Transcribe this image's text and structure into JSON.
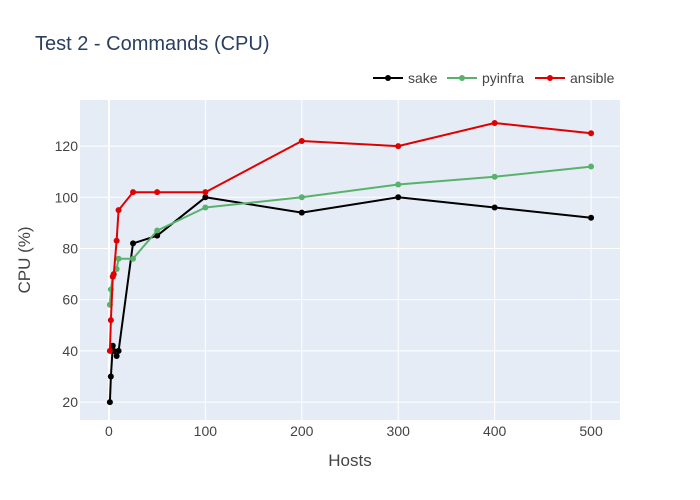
{
  "chart_data": {
    "type": "line",
    "title": "Test 2 - Commands (CPU)",
    "xlabel": "Hosts",
    "ylabel": "CPU (%)",
    "xlim": [
      -30,
      530
    ],
    "ylim": [
      13,
      138
    ],
    "x_ticks": [
      0,
      100,
      200,
      300,
      400,
      500
    ],
    "y_ticks": [
      20,
      40,
      60,
      80,
      100,
      120
    ],
    "grid": true,
    "legend_position": "top-right",
    "series": [
      {
        "name": "sake",
        "color": "#000000",
        "x": [
          1,
          2,
          4,
          5,
          8,
          10,
          25,
          50,
          100,
          200,
          300,
          400,
          500
        ],
        "y": [
          20,
          30,
          42,
          40,
          38,
          40,
          82,
          85,
          100,
          94,
          100,
          96,
          92
        ]
      },
      {
        "name": "pyinfra",
        "color": "#59b26b",
        "x": [
          1,
          2,
          4,
          5,
          8,
          10,
          25,
          50,
          100,
          200,
          300,
          400,
          500
        ],
        "y": [
          58,
          64,
          69,
          70,
          72,
          76,
          76,
          87,
          96,
          100,
          105,
          108,
          112
        ]
      },
      {
        "name": "ansible",
        "color": "#e00000",
        "x": [
          1,
          2,
          4,
          5,
          8,
          10,
          25,
          50,
          100,
          200,
          300,
          400,
          500
        ],
        "y": [
          40,
          52,
          69,
          70,
          83,
          95,
          102,
          102,
          102,
          122,
          120,
          129,
          125
        ]
      }
    ]
  }
}
